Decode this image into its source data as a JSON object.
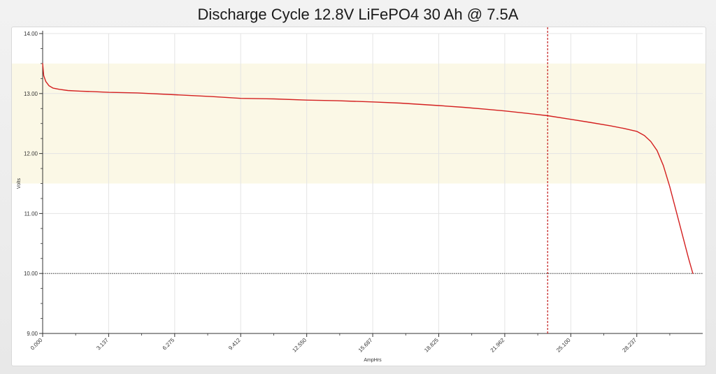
{
  "chart_data": {
    "type": "line",
    "title": "Discharge Cycle 12.8V LiFePO4 30 Ah @ 7.5A",
    "xlabel": "AmpHrs",
    "ylabel": "Volts",
    "xlim": [
      0,
      31.37
    ],
    "ylim": [
      9.0,
      14.0
    ],
    "x_ticks": [
      "0.000",
      "3.137",
      "6.275",
      "9.412",
      "12.550",
      "15.687",
      "18.825",
      "21.962",
      "25.100",
      "28.237"
    ],
    "y_ticks": [
      "9.00",
      "10.00",
      "11.00",
      "12.00",
      "13.00",
      "14.00"
    ],
    "grid": true,
    "highlight_band": {
      "y": [
        11.5,
        13.5
      ],
      "color": "#fbf8e6"
    },
    "reference_line": {
      "y": 10.0,
      "color": "#222222"
    },
    "marker_line": {
      "x": 24.0,
      "color": "#c41e1e"
    },
    "series": [
      {
        "color": "#d42020",
        "x": [
          0.0,
          0.05,
          0.15,
          0.3,
          0.5,
          0.8,
          1.2,
          1.8,
          2.5,
          3.137,
          4.5,
          6.275,
          8.0,
          9.412,
          11.0,
          12.55,
          14.0,
          15.687,
          17.0,
          18.825,
          20.0,
          21.0,
          21.962,
          23.0,
          24.0,
          25.1,
          26.0,
          27.0,
          27.6,
          28.237,
          28.6,
          28.9,
          29.2,
          29.5,
          29.8,
          30.1,
          30.4,
          30.7,
          30.9
        ],
        "y": [
          13.5,
          13.3,
          13.2,
          13.13,
          13.09,
          13.07,
          13.05,
          13.04,
          13.03,
          13.02,
          13.01,
          12.98,
          12.95,
          12.92,
          12.91,
          12.89,
          12.88,
          12.86,
          12.84,
          12.8,
          12.77,
          12.74,
          12.71,
          12.67,
          12.63,
          12.57,
          12.52,
          12.46,
          12.42,
          12.37,
          12.3,
          12.2,
          12.05,
          11.8,
          11.45,
          11.05,
          10.65,
          10.25,
          10.0
        ]
      }
    ]
  }
}
